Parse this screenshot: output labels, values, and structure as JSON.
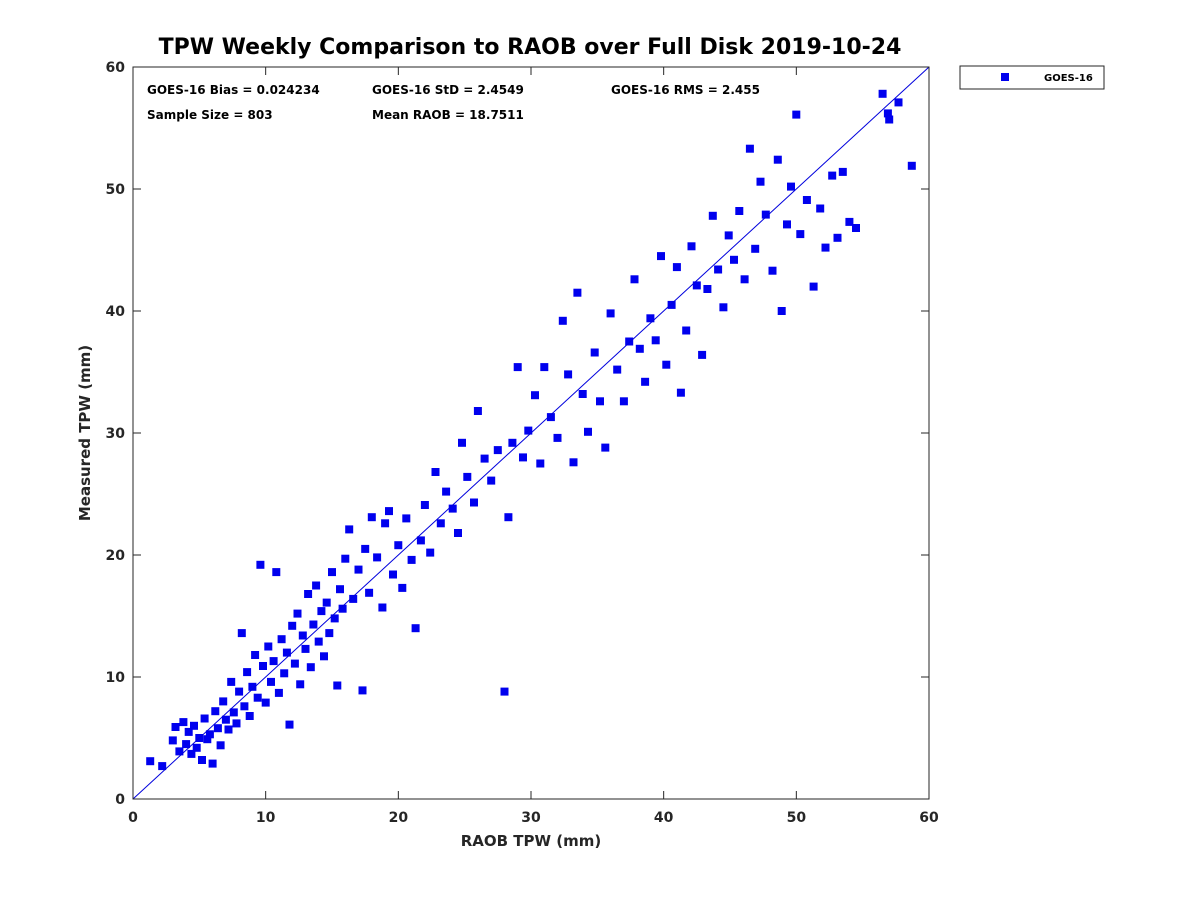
{
  "colors": {
    "marker": "#0000ee",
    "refline": "#0000dd",
    "axis": "#262626"
  },
  "chart_data": {
    "type": "scatter",
    "title": "TPW Weekly Comparison to RAOB over Full Disk 2019-10-24",
    "xlabel": "RAOB TPW (mm)",
    "ylabel": "Measured TPW (mm)",
    "xlim": [
      0,
      60
    ],
    "ylim": [
      0,
      60
    ],
    "xticks": [
      0,
      10,
      20,
      30,
      40,
      50,
      60
    ],
    "yticks": [
      0,
      10,
      20,
      30,
      40,
      50,
      60
    ],
    "reference_line": {
      "from": [
        0,
        0
      ],
      "to": [
        60,
        60
      ]
    },
    "legend": {
      "position": "outside-top-right",
      "entries": [
        "GOES-16"
      ]
    },
    "stats": {
      "bias": "GOES-16 Bias = 0.024234",
      "std": "GOES-16 StD = 2.4549",
      "rms": "GOES-16 RMS = 2.455",
      "sample_size": "Sample Size = 803",
      "mean_raob": "Mean RAOB = 18.7511"
    },
    "series": [
      {
        "name": "GOES-16",
        "marker": "square",
        "points": [
          [
            1.3,
            3.1
          ],
          [
            2.2,
            2.7
          ],
          [
            3.0,
            4.8
          ],
          [
            3.2,
            5.9
          ],
          [
            3.5,
            3.9
          ],
          [
            3.8,
            6.3
          ],
          [
            4.0,
            4.5
          ],
          [
            4.2,
            5.5
          ],
          [
            4.4,
            3.7
          ],
          [
            4.6,
            6.0
          ],
          [
            4.8,
            4.2
          ],
          [
            5.0,
            5.0
          ],
          [
            5.2,
            3.2
          ],
          [
            5.4,
            6.6
          ],
          [
            5.6,
            4.9
          ],
          [
            5.8,
            5.3
          ],
          [
            6.0,
            2.9
          ],
          [
            6.2,
            7.2
          ],
          [
            6.4,
            5.8
          ],
          [
            6.6,
            4.4
          ],
          [
            6.8,
            8.0
          ],
          [
            7.0,
            6.5
          ],
          [
            7.2,
            5.7
          ],
          [
            7.4,
            9.6
          ],
          [
            7.6,
            7.1
          ],
          [
            7.8,
            6.2
          ],
          [
            8.0,
            8.8
          ],
          [
            8.2,
            13.6
          ],
          [
            8.4,
            7.6
          ],
          [
            8.6,
            10.4
          ],
          [
            8.8,
            6.8
          ],
          [
            9.0,
            9.2
          ],
          [
            9.2,
            11.8
          ],
          [
            9.4,
            8.3
          ],
          [
            9.6,
            19.2
          ],
          [
            9.8,
            10.9
          ],
          [
            10.0,
            7.9
          ],
          [
            10.2,
            12.5
          ],
          [
            10.4,
            9.6
          ],
          [
            10.6,
            11.3
          ],
          [
            10.8,
            18.6
          ],
          [
            11.0,
            8.7
          ],
          [
            11.2,
            13.1
          ],
          [
            11.4,
            10.3
          ],
          [
            11.6,
            12.0
          ],
          [
            11.8,
            6.1
          ],
          [
            12.0,
            14.2
          ],
          [
            12.2,
            11.1
          ],
          [
            12.4,
            15.2
          ],
          [
            12.6,
            9.4
          ],
          [
            12.8,
            13.4
          ],
          [
            13.0,
            12.3
          ],
          [
            13.2,
            16.8
          ],
          [
            13.4,
            10.8
          ],
          [
            13.6,
            14.3
          ],
          [
            13.8,
            17.5
          ],
          [
            14.0,
            12.9
          ],
          [
            14.2,
            15.4
          ],
          [
            14.4,
            11.7
          ],
          [
            14.6,
            16.1
          ],
          [
            14.8,
            13.6
          ],
          [
            15.0,
            18.6
          ],
          [
            15.2,
            14.8
          ],
          [
            15.4,
            9.3
          ],
          [
            15.6,
            17.2
          ],
          [
            15.8,
            15.6
          ],
          [
            16.0,
            19.7
          ],
          [
            16.3,
            22.1
          ],
          [
            16.6,
            16.4
          ],
          [
            17.0,
            18.8
          ],
          [
            17.3,
            8.9
          ],
          [
            17.5,
            20.5
          ],
          [
            17.8,
            16.9
          ],
          [
            18.0,
            23.1
          ],
          [
            18.4,
            19.8
          ],
          [
            18.8,
            15.7
          ],
          [
            19.0,
            22.6
          ],
          [
            19.3,
            23.6
          ],
          [
            19.6,
            18.4
          ],
          [
            20.0,
            20.8
          ],
          [
            20.3,
            17.3
          ],
          [
            20.6,
            23.0
          ],
          [
            21.0,
            19.6
          ],
          [
            21.3,
            14.0
          ],
          [
            21.7,
            21.2
          ],
          [
            22.0,
            24.1
          ],
          [
            22.4,
            20.2
          ],
          [
            22.8,
            26.8
          ],
          [
            23.2,
            22.6
          ],
          [
            23.6,
            25.2
          ],
          [
            24.1,
            23.8
          ],
          [
            24.5,
            21.8
          ],
          [
            24.8,
            29.2
          ],
          [
            25.2,
            26.4
          ],
          [
            25.7,
            24.3
          ],
          [
            26.0,
            31.8
          ],
          [
            26.5,
            27.9
          ],
          [
            27.0,
            26.1
          ],
          [
            27.5,
            28.6
          ],
          [
            28.0,
            8.8
          ],
          [
            28.3,
            23.1
          ],
          [
            28.6,
            29.2
          ],
          [
            29.0,
            35.4
          ],
          [
            29.4,
            28.0
          ],
          [
            29.8,
            30.2
          ],
          [
            30.3,
            33.1
          ],
          [
            30.7,
            27.5
          ],
          [
            31.0,
            35.4
          ],
          [
            31.5,
            31.3
          ],
          [
            32.0,
            29.6
          ],
          [
            32.4,
            39.2
          ],
          [
            32.8,
            34.8
          ],
          [
            33.2,
            27.6
          ],
          [
            33.5,
            41.5
          ],
          [
            33.9,
            33.2
          ],
          [
            34.3,
            30.1
          ],
          [
            34.8,
            36.6
          ],
          [
            35.2,
            32.6
          ],
          [
            35.6,
            28.8
          ],
          [
            36.0,
            39.8
          ],
          [
            36.5,
            35.2
          ],
          [
            37.0,
            32.6
          ],
          [
            37.4,
            37.5
          ],
          [
            37.8,
            42.6
          ],
          [
            38.2,
            36.9
          ],
          [
            38.6,
            34.2
          ],
          [
            39.0,
            39.4
          ],
          [
            39.4,
            37.6
          ],
          [
            39.8,
            44.5
          ],
          [
            40.2,
            35.6
          ],
          [
            40.6,
            40.5
          ],
          [
            41.0,
            43.6
          ],
          [
            41.3,
            33.3
          ],
          [
            41.7,
            38.4
          ],
          [
            42.1,
            45.3
          ],
          [
            42.5,
            42.1
          ],
          [
            42.9,
            36.4
          ],
          [
            43.3,
            41.8
          ],
          [
            43.7,
            47.8
          ],
          [
            44.1,
            43.4
          ],
          [
            44.5,
            40.3
          ],
          [
            44.9,
            46.2
          ],
          [
            45.3,
            44.2
          ],
          [
            45.7,
            48.2
          ],
          [
            46.1,
            42.6
          ],
          [
            46.5,
            53.3
          ],
          [
            46.9,
            45.1
          ],
          [
            47.3,
            50.6
          ],
          [
            47.7,
            47.9
          ],
          [
            48.2,
            43.3
          ],
          [
            48.6,
            52.4
          ],
          [
            48.9,
            40.0
          ],
          [
            49.3,
            47.1
          ],
          [
            49.6,
            50.2
          ],
          [
            50.0,
            56.1
          ],
          [
            50.3,
            46.3
          ],
          [
            50.8,
            49.1
          ],
          [
            51.3,
            42.0
          ],
          [
            51.8,
            48.4
          ],
          [
            52.2,
            45.2
          ],
          [
            52.7,
            51.1
          ],
          [
            53.1,
            46.0
          ],
          [
            53.5,
            51.4
          ],
          [
            54.0,
            47.3
          ],
          [
            54.5,
            46.8
          ],
          [
            56.5,
            57.8
          ],
          [
            57.0,
            55.7
          ],
          [
            57.7,
            57.1
          ],
          [
            58.7,
            51.9
          ],
          [
            56.9,
            56.2
          ]
        ]
      }
    ]
  }
}
